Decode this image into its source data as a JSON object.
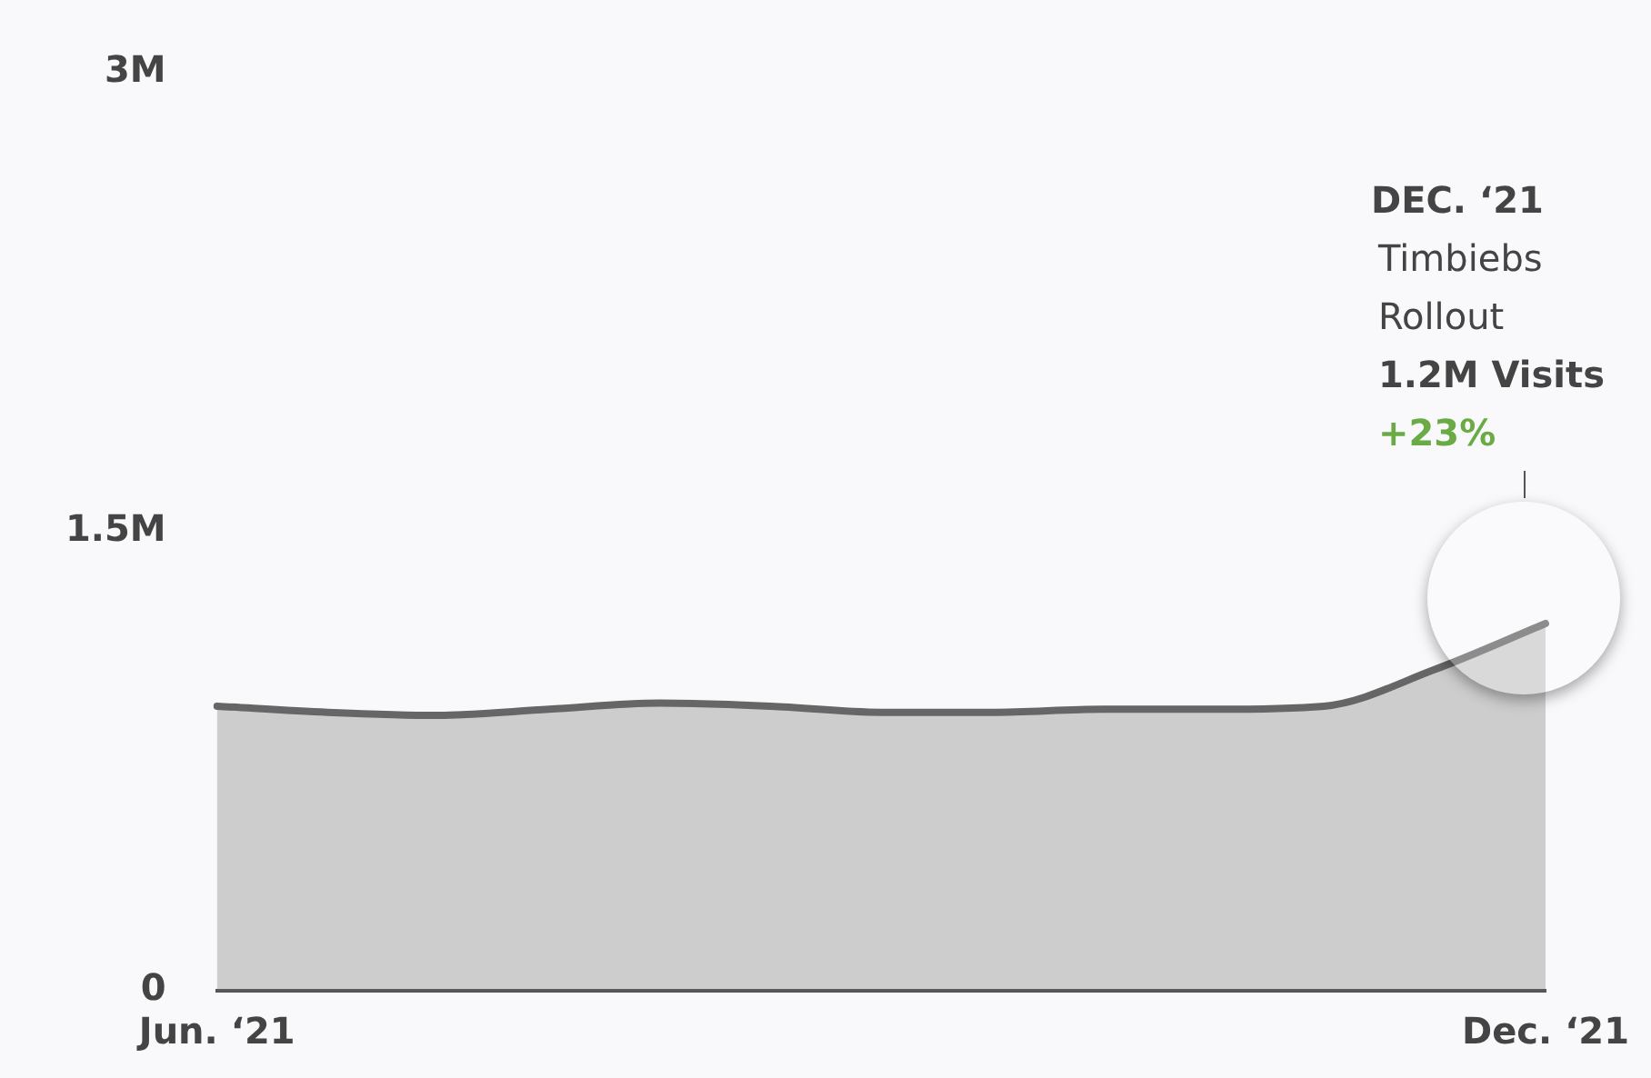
{
  "chart_data": {
    "type": "area",
    "categories": [
      "Jun. ‘21",
      null,
      null,
      null,
      null,
      null,
      null,
      null,
      null,
      null,
      null,
      null,
      "Dec. ‘21"
    ],
    "series": [
      {
        "color": "#666666",
        "values": [
          0.93,
          0.91,
          0.9,
          0.92,
          0.94,
          0.93,
          0.91,
          0.91,
          0.92,
          0.92,
          0.93,
          1.05,
          1.2
        ]
      }
    ],
    "ylim": [
      0,
      3
    ],
    "yticks": [
      {
        "value": 0,
        "label": "0"
      },
      {
        "value": 1.5,
        "label": "1.5M"
      },
      {
        "value": 3,
        "label": "3M"
      }
    ],
    "grid": false,
    "legend": false,
    "marker": "none",
    "line_style": "solid",
    "annotations": [
      "DEC. ‘21\nTimbiebs\nRollout\n1.2M Visits\n+23%"
    ]
  }
}
